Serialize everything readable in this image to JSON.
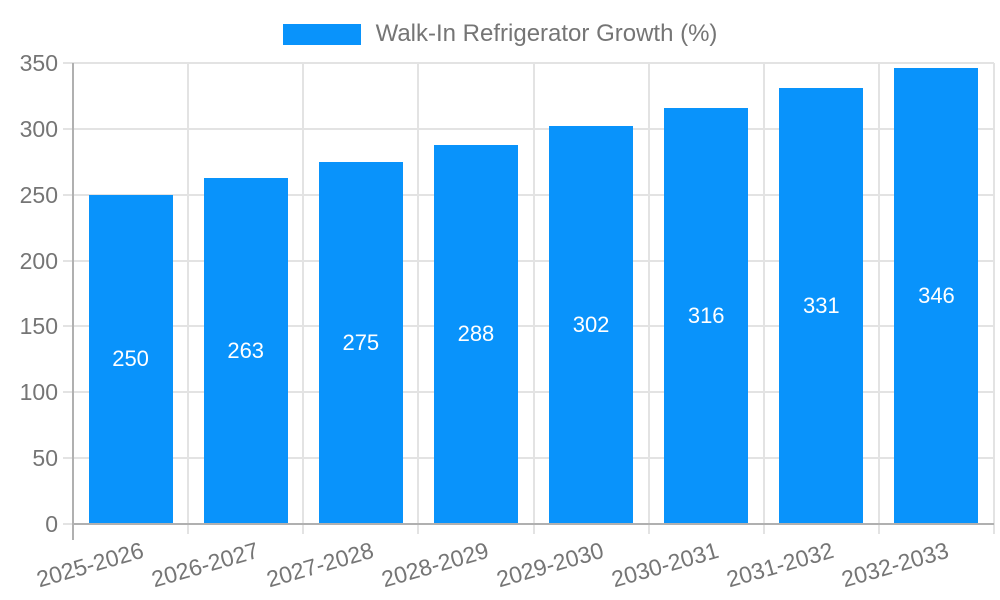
{
  "chart_data": {
    "type": "bar",
    "title": "",
    "legend_label": "Walk-In Refrigerator Growth (%)",
    "legend_position": "top",
    "categories": [
      "2025-2026",
      "2026-2027",
      "2027-2028",
      "2028-2029",
      "2029-2030",
      "2030-2031",
      "2031-2032",
      "2032-2033"
    ],
    "values": [
      250,
      263,
      275,
      288,
      302,
      316,
      331,
      346
    ],
    "xlabel": "",
    "ylabel": "",
    "ylim": [
      0,
      350
    ],
    "yticks": [
      0,
      50,
      100,
      150,
      200,
      250,
      300,
      350
    ],
    "grid": true,
    "bar_color": "#0993fb",
    "value_label_color": "#ffffff",
    "axis_text_color": "#757575",
    "gridline_color": "#e3e3e3",
    "axis_line_color": "#b0b0b0",
    "background_color": "#ffffff"
  }
}
